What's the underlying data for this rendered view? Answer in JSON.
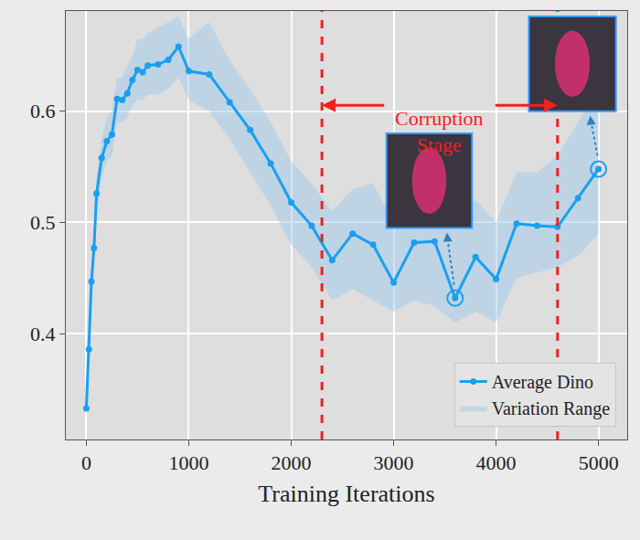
{
  "chart_data": {
    "type": "line",
    "xlabel": "Training Iterations",
    "x": [
      0,
      25,
      50,
      75,
      100,
      150,
      200,
      250,
      300,
      350,
      400,
      450,
      500,
      550,
      600,
      700,
      800,
      900,
      1000,
      1200,
      1400,
      1600,
      1800,
      2000,
      2200,
      2400,
      2600,
      2800,
      3000,
      3200,
      3400,
      3600,
      3800,
      4000,
      4200,
      4400,
      4600,
      4800,
      5000
    ],
    "series": [
      {
        "name": "Average Dino",
        "color": "#1a9ff0",
        "marker": "circle",
        "line_style": "solid",
        "values": [
          0.333,
          0.386,
          0.447,
          0.477,
          0.526,
          0.558,
          0.573,
          0.579,
          0.611,
          0.61,
          0.616,
          0.628,
          0.637,
          0.635,
          0.641,
          0.642,
          0.646,
          0.658,
          0.636,
          0.633,
          0.608,
          0.583,
          0.553,
          0.518,
          0.497,
          0.466,
          0.49,
          0.48,
          0.446,
          0.482,
          0.483,
          0.432,
          0.469,
          0.449,
          0.499,
          0.497,
          0.496,
          0.522,
          0.548
        ]
      }
    ],
    "band": {
      "name": "Variation Range",
      "color": "#a9cfe6",
      "lower": [
        0.333,
        0.37,
        0.43,
        0.46,
        0.51,
        0.54,
        0.555,
        0.56,
        0.59,
        0.59,
        0.595,
        0.605,
        0.61,
        0.61,
        0.615,
        0.615,
        0.62,
        0.63,
        0.61,
        0.6,
        0.575,
        0.545,
        0.515,
        0.48,
        0.46,
        0.43,
        0.44,
        0.43,
        0.42,
        0.43,
        0.425,
        0.41,
        0.42,
        0.41,
        0.45,
        0.455,
        0.46,
        0.47,
        0.49
      ],
      "upper": [
        0.333,
        0.4,
        0.46,
        0.49,
        0.54,
        0.575,
        0.595,
        0.6,
        0.63,
        0.63,
        0.64,
        0.65,
        0.665,
        0.665,
        0.67,
        0.675,
        0.68,
        0.685,
        0.665,
        0.68,
        0.645,
        0.62,
        0.59,
        0.555,
        0.535,
        0.51,
        0.53,
        0.535,
        0.5,
        0.52,
        0.53,
        0.5,
        0.52,
        0.5,
        0.545,
        0.545,
        0.56,
        0.59,
        0.62
      ]
    },
    "corruption_stage": {
      "text": "Corruption Stage",
      "start": 2300,
      "end": 4600,
      "color": "#ee2222"
    },
    "highlighted_x": [
      3600,
      5000
    ],
    "xlim": [
      -200,
      5280
    ],
    "xticks": [
      0,
      1000,
      2000,
      3000,
      4000,
      5000
    ],
    "ylim": [
      0.305,
      0.69
    ],
    "yticks": [
      0.4,
      0.5,
      0.6
    ],
    "grid": true,
    "legend": "lower right"
  }
}
